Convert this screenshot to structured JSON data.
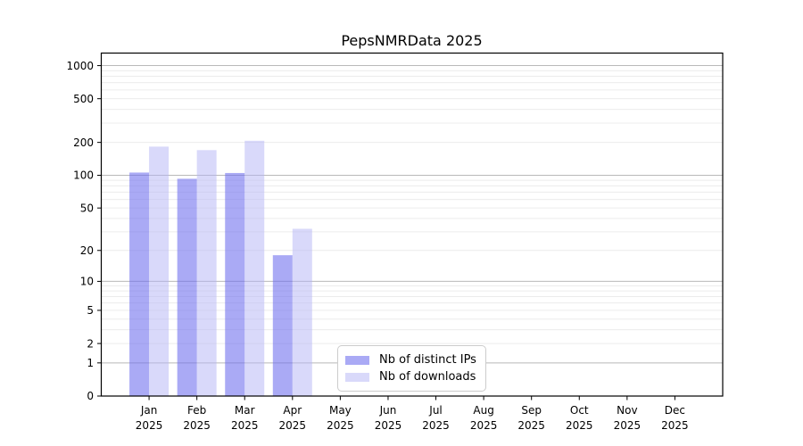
{
  "title": "PepsNMRData 2025",
  "chart_data": {
    "type": "bar",
    "title": "PepsNMRData 2025",
    "categories": [
      "Jan 2025",
      "Feb 2025",
      "Mar 2025",
      "Apr 2025",
      "May 2025",
      "Jun 2025",
      "Jul 2025",
      "Aug 2025",
      "Sep 2025",
      "Oct 2025",
      "Nov 2025",
      "Dec 2025"
    ],
    "series": [
      {
        "name": "Nb of distinct IPs",
        "color": "rgba(108,108,238,0.58)",
        "values": [
          106,
          93,
          105,
          18,
          0,
          0,
          0,
          0,
          0,
          0,
          0,
          0
        ]
      },
      {
        "name": "Nb of downloads",
        "color": "rgba(180,180,245,0.5)",
        "values": [
          183,
          170,
          207,
          32,
          0,
          0,
          0,
          0,
          0,
          0,
          0,
          0
        ]
      }
    ],
    "xlabel": "",
    "ylabel": "",
    "y_axis": {
      "scale": "log1p",
      "ticks": [
        0,
        1,
        2,
        5,
        10,
        20,
        50,
        100,
        200,
        500,
        1000
      ],
      "max": 1300,
      "major_grid_values": [
        1,
        10,
        100,
        1000
      ]
    },
    "grid": "on",
    "legend_position": "lower-center-inside"
  },
  "colors": {
    "major_grid": "#b9b9b9",
    "minor_grid": "#ececec",
    "axis": "#000000",
    "background": "#ffffff"
  }
}
